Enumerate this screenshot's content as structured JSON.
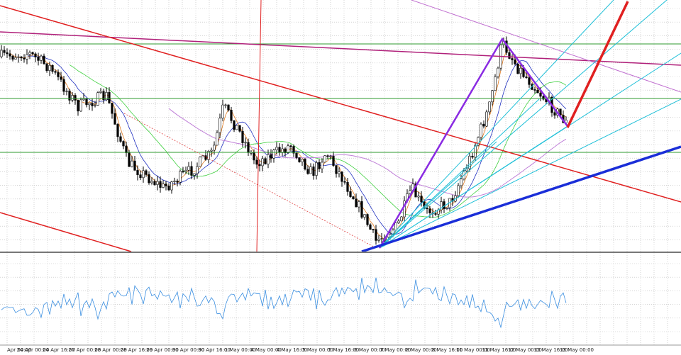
{
  "x_axis": {
    "labels": [
      "Apr 00:00",
      "24 Apr 00:00",
      "24 Apr 16:00",
      "27 Apr 00:00",
      "28 Apr 00:00",
      "28 Apr 16:00",
      "29 Apr 00:00",
      "30 Apr 00:00",
      "30 Apr 16:00",
      "1 May 00:00",
      "4 May 00:00",
      "4 May 16:00",
      "5 May 00:00",
      "5 May 16:00",
      "6 May 00:00",
      "7 May 00:00",
      "8 May 00:00",
      "8 May 16:00",
      "11 May 00:00",
      "11 May 16:00",
      "12 May 00:00",
      "12 May 16:00",
      "13 May 00:00"
    ]
  }
}
